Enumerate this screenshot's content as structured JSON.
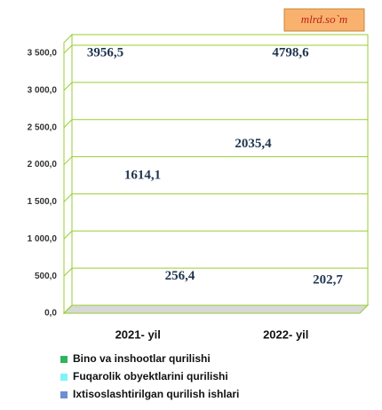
{
  "chart_data": {
    "type": "bar3d",
    "unit_label": "mlrd.so`m",
    "categories": [
      "2021- yil",
      "2022- yil"
    ],
    "series": [
      {
        "name": "Bino va inshootlar qurilishi",
        "color": "#2fb45c",
        "values": [
          3956.5,
          2035.4
        ],
        "value_labels": [
          "3956,5",
          "2035,4"
        ]
      },
      {
        "name": "Fuqarolik obyektlarini qurilishi",
        "color": "#80f4f4",
        "values": [
          1614.1,
          4798.6
        ],
        "value_labels": [
          "1614,1",
          "4798,6"
        ]
      },
      {
        "name": "Ixtisoslashtirilgan qurilish ishlari",
        "color": "#6b8fd2",
        "values": [
          256.4,
          202.7
        ],
        "value_labels": [
          "256,4",
          "202,7"
        ]
      }
    ],
    "ylim": [
      0,
      3500
    ],
    "yticks": [
      {
        "value": 0,
        "label": "0,0"
      },
      {
        "value": 500,
        "label": "500,0"
      },
      {
        "value": 1000,
        "label": "1 000,0"
      },
      {
        "value": 1500,
        "label": "1 500,0"
      },
      {
        "value": 2000,
        "label": "2 000,0"
      },
      {
        "value": 2500,
        "label": "2 500,0"
      },
      {
        "value": 3000,
        "label": "3 000,0"
      },
      {
        "value": 3500,
        "label": "3 500,0"
      }
    ],
    "grid": true,
    "legend": "bottom"
  }
}
